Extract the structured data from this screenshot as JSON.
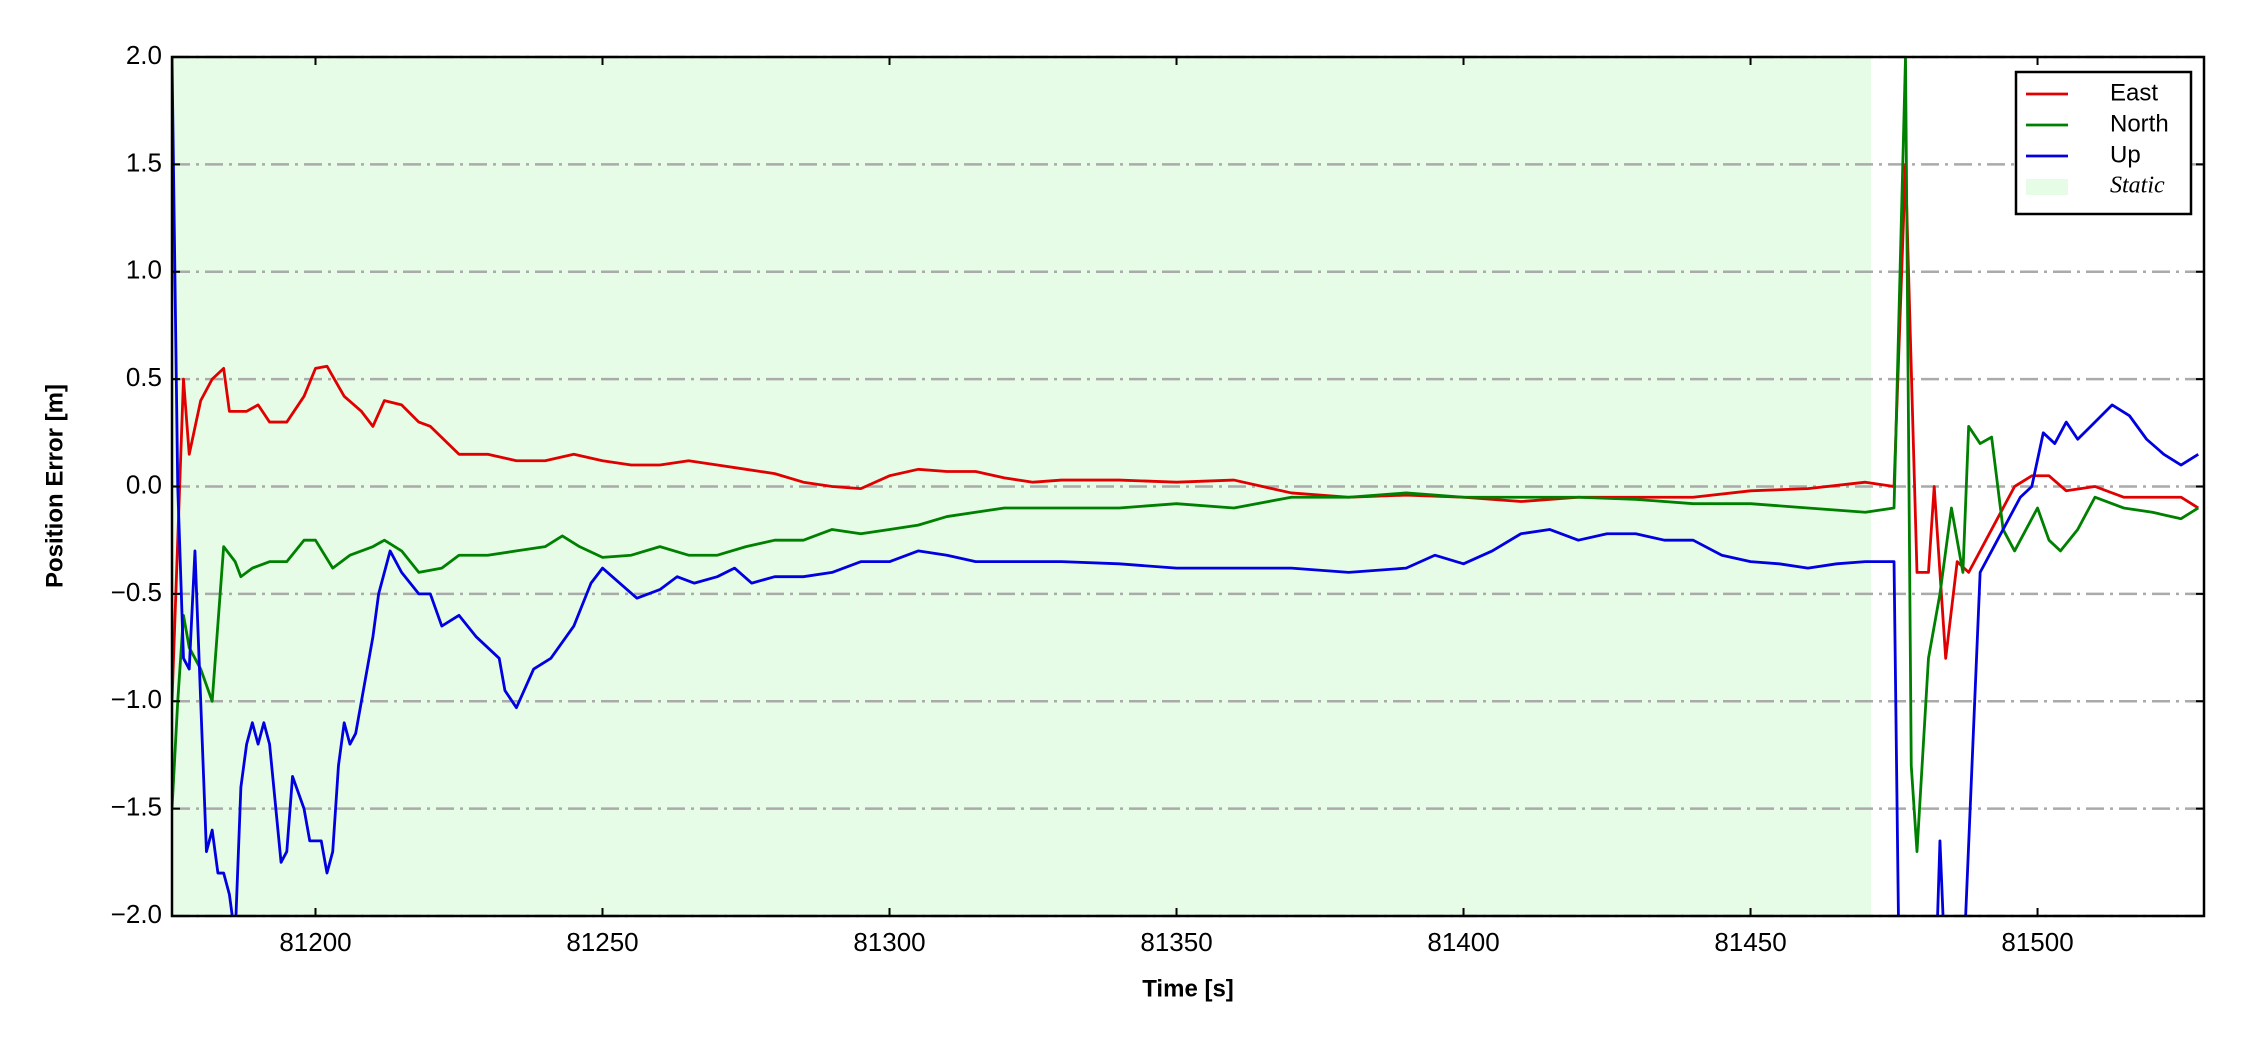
{
  "chart_data": {
    "type": "line",
    "xlabel": "Time [s]",
    "ylabel": "Position Error [m]",
    "xlim": [
      81175,
      81529
    ],
    "ylim": [
      -2.0,
      2.0
    ],
    "xticks": [
      81200,
      81250,
      81300,
      81350,
      81400,
      81450,
      81500
    ],
    "yticks": [
      {
        "value": -2.0,
        "label": "−2.0"
      },
      {
        "value": -1.5,
        "label": "−1.5"
      },
      {
        "value": -1.0,
        "label": "−1.0"
      },
      {
        "value": -0.5,
        "label": "−0.5"
      },
      {
        "value": 0.0,
        "label": "0.0"
      },
      {
        "value": 0.5,
        "label": "0.5"
      },
      {
        "value": 1.0,
        "label": "1.0"
      },
      {
        "value": 1.5,
        "label": "1.5"
      },
      {
        "value": 2.0,
        "label": "2.0"
      }
    ],
    "grid": true,
    "legend": "upper right",
    "shaded_region": {
      "label": "Static",
      "x_range": [
        81175,
        81471
      ],
      "color": "#e6fce6"
    },
    "series": [
      {
        "name": "East",
        "color": "#e00000",
        "x": [
          81175,
          81177,
          81178,
          81180,
          81182,
          81184,
          81185,
          81188,
          81190,
          81192,
          81195,
          81198,
          81200,
          81202,
          81205,
          81208,
          81210,
          81212,
          81215,
          81218,
          81220,
          81225,
          81230,
          81235,
          81240,
          81245,
          81250,
          81255,
          81260,
          81265,
          81270,
          81275,
          81280,
          81285,
          81290,
          81295,
          81300,
          81305,
          81310,
          81315,
          81320,
          81325,
          81330,
          81340,
          81350,
          81360,
          81365,
          81370,
          81380,
          81390,
          81400,
          81410,
          81420,
          81430,
          81440,
          81450,
          81460,
          81470,
          81475,
          81477,
          81479,
          81481,
          81482,
          81484,
          81486,
          81488,
          81490,
          81493,
          81496,
          81499,
          81502,
          81505,
          81510,
          81515,
          81520,
          81525,
          81528
        ],
        "values": [
          -1.0,
          0.5,
          0.15,
          0.4,
          0.5,
          0.55,
          0.35,
          0.35,
          0.38,
          0.3,
          0.3,
          0.42,
          0.55,
          0.56,
          0.42,
          0.35,
          0.28,
          0.4,
          0.38,
          0.3,
          0.28,
          0.15,
          0.15,
          0.12,
          0.12,
          0.15,
          0.12,
          0.1,
          0.1,
          0.12,
          0.1,
          0.08,
          0.06,
          0.02,
          0.0,
          -0.01,
          0.05,
          0.08,
          0.07,
          0.07,
          0.04,
          0.02,
          0.03,
          0.03,
          0.02,
          0.03,
          0.0,
          -0.03,
          -0.05,
          -0.04,
          -0.05,
          -0.07,
          -0.05,
          -0.05,
          -0.05,
          -0.02,
          -0.01,
          0.02,
          0.0,
          1.5,
          -0.4,
          -0.4,
          0.0,
          -0.8,
          -0.35,
          -0.4,
          -0.3,
          -0.15,
          0.0,
          0.05,
          0.05,
          -0.02,
          0.0,
          -0.05,
          -0.05,
          -0.05,
          -0.1
        ]
      },
      {
        "name": "North",
        "color": "#008000",
        "x": [
          81175,
          81176,
          81177,
          81178,
          81180,
          81182,
          81184,
          81186,
          81187,
          81189,
          81192,
          81195,
          81198,
          81200,
          81203,
          81206,
          81210,
          81212,
          81215,
          81218,
          81222,
          81225,
          81230,
          81235,
          81240,
          81243,
          81246,
          81250,
          81255,
          81260,
          81265,
          81270,
          81275,
          81280,
          81285,
          81290,
          81295,
          81300,
          81305,
          81310,
          81315,
          81320,
          81330,
          81340,
          81350,
          81360,
          81370,
          81380,
          81390,
          81400,
          81410,
          81420,
          81430,
          81440,
          81450,
          81460,
          81470,
          81475,
          81477,
          81478,
          81479,
          81481,
          81483,
          81485,
          81487,
          81488,
          81490,
          81492,
          81494,
          81496,
          81498,
          81500,
          81502,
          81504,
          81507,
          81510,
          81515,
          81520,
          81525,
          81528
        ],
        "values": [
          -1.5,
          -1.0,
          -0.6,
          -0.75,
          -0.85,
          -1.0,
          -0.28,
          -0.35,
          -0.42,
          -0.38,
          -0.35,
          -0.35,
          -0.25,
          -0.25,
          -0.38,
          -0.32,
          -0.28,
          -0.25,
          -0.3,
          -0.4,
          -0.38,
          -0.32,
          -0.32,
          -0.3,
          -0.28,
          -0.23,
          -0.28,
          -0.33,
          -0.32,
          -0.28,
          -0.32,
          -0.32,
          -0.28,
          -0.25,
          -0.25,
          -0.2,
          -0.22,
          -0.2,
          -0.18,
          -0.14,
          -0.12,
          -0.1,
          -0.1,
          -0.1,
          -0.08,
          -0.1,
          -0.05,
          -0.05,
          -0.03,
          -0.05,
          -0.05,
          -0.05,
          -0.06,
          -0.08,
          -0.08,
          -0.1,
          -0.12,
          -0.1,
          2.0,
          -1.3,
          -1.7,
          -0.8,
          -0.5,
          -0.1,
          -0.4,
          0.28,
          0.2,
          0.23,
          -0.2,
          -0.3,
          -0.2,
          -0.1,
          -0.25,
          -0.3,
          -0.2,
          -0.05,
          -0.1,
          -0.12,
          -0.15,
          -0.1
        ]
      },
      {
        "name": "Up",
        "color": "#0000e0",
        "x": [
          81175,
          81176,
          81177,
          81178,
          81179,
          81180,
          81181,
          81182,
          81183,
          81184,
          81185,
          81186,
          81187,
          81188,
          81189,
          81190,
          81191,
          81192,
          81194,
          81195,
          81196,
          81198,
          81199,
          81201,
          81202,
          81203,
          81204,
          81205,
          81206,
          81207,
          81210,
          81211,
          81213,
          81215,
          81218,
          81220,
          81222,
          81225,
          81228,
          81230,
          81232,
          81233,
          81235,
          81238,
          81241,
          81245,
          81248,
          81250,
          81253,
          81256,
          81260,
          81263,
          81266,
          81270,
          81273,
          81276,
          81280,
          81285,
          81290,
          81295,
          81300,
          81305,
          81310,
          81315,
          81320,
          81330,
          81340,
          81350,
          81360,
          81370,
          81380,
          81390,
          81395,
          81400,
          81405,
          81410,
          81415,
          81420,
          81425,
          81430,
          81435,
          81440,
          81445,
          81450,
          81455,
          81460,
          81465,
          81470,
          81475,
          81476,
          81482,
          81483,
          81484,
          81487,
          81490,
          81492,
          81494,
          81497,
          81499,
          81501,
          81503,
          81505,
          81507,
          81510,
          81513,
          81516,
          81519,
          81522,
          81525,
          81528
        ],
        "values": [
          2.0,
          0.0,
          -0.8,
          -0.85,
          -0.3,
          -1.0,
          -1.7,
          -1.6,
          -1.8,
          -1.8,
          -1.9,
          -2.1,
          -1.4,
          -1.2,
          -1.1,
          -1.2,
          -1.1,
          -1.2,
          -1.75,
          -1.7,
          -1.35,
          -1.5,
          -1.65,
          -1.65,
          -1.8,
          -1.7,
          -1.3,
          -1.1,
          -1.2,
          -1.15,
          -0.7,
          -0.5,
          -0.3,
          -0.4,
          -0.5,
          -0.5,
          -0.65,
          -0.6,
          -0.7,
          -0.75,
          -0.8,
          -0.95,
          -1.03,
          -0.85,
          -0.8,
          -0.65,
          -0.45,
          -0.38,
          -0.45,
          -0.52,
          -0.48,
          -0.42,
          -0.45,
          -0.42,
          -0.38,
          -0.45,
          -0.42,
          -0.42,
          -0.4,
          -0.35,
          -0.35,
          -0.3,
          -0.32,
          -0.35,
          -0.35,
          -0.35,
          -0.36,
          -0.38,
          -0.38,
          -0.38,
          -0.4,
          -0.38,
          -0.32,
          -0.36,
          -0.3,
          -0.22,
          -0.2,
          -0.25,
          -0.22,
          -0.22,
          -0.25,
          -0.25,
          -0.32,
          -0.35,
          -0.36,
          -0.38,
          -0.36,
          -0.35,
          -0.35,
          -2.5,
          -2.5,
          -1.65,
          -2.3,
          -2.3,
          -0.4,
          -0.3,
          -0.2,
          -0.05,
          0.0,
          0.25,
          0.2,
          0.3,
          0.22,
          0.3,
          0.38,
          0.33,
          0.22,
          0.15,
          0.1,
          0.15
        ]
      }
    ]
  }
}
